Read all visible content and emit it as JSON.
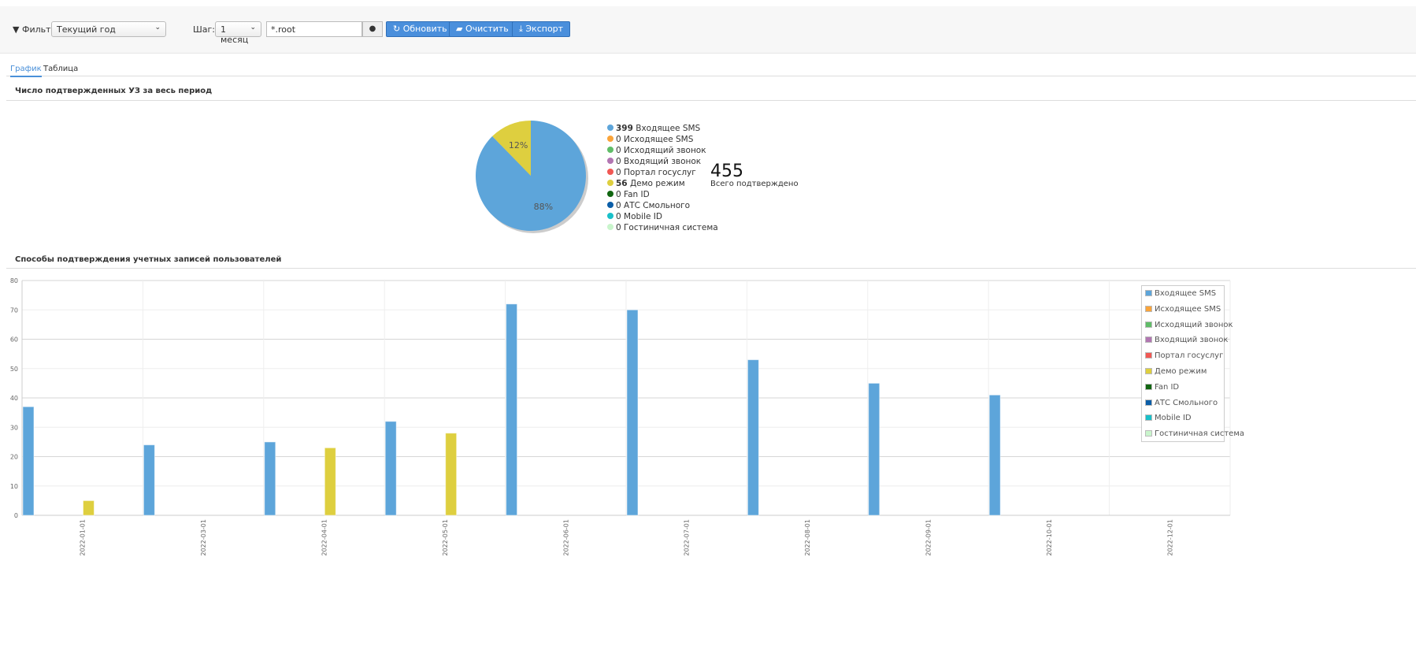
{
  "toolbar": {
    "filter_label": "Фильтр:",
    "filter_value": "Текущий год",
    "step_label": "Шаг:",
    "step_value": "1 месяц",
    "scope_value": "*.root",
    "refresh": "Обновить",
    "clear": "Очистить",
    "export": "Экспорт"
  },
  "tabs": [
    {
      "label": "График",
      "active": true
    },
    {
      "label": "Таблица",
      "active": false
    }
  ],
  "pie_section": {
    "title": "Число подтвержденных УЗ за весь период",
    "total": "455",
    "total_label": "Всего подтверждено"
  },
  "bar_section": {
    "title": "Способы подтверждения учетных записей пользователей"
  },
  "colors": [
    "#5da5da",
    "#faa43a",
    "#60bd68",
    "#b276b2",
    "#f15854",
    "#decf3f",
    "#116611",
    "#0b5ea8",
    "#19c0c9",
    "#c9f5cc"
  ],
  "chart_data": [
    {
      "type": "pie",
      "slices": [
        {
          "name": "Входящее SMS",
          "value": 399,
          "label": "88%"
        },
        {
          "name": "Исходящее SMS",
          "value": 0
        },
        {
          "name": "Исходящий звонок",
          "value": 0
        },
        {
          "name": "Входящий звонок",
          "value": 0
        },
        {
          "name": "Портал госуслуг",
          "value": 0
        },
        {
          "name": "Демо режим",
          "value": 56,
          "label": "12%"
        },
        {
          "name": "Fan ID",
          "value": 0
        },
        {
          "name": "АТС Смольного",
          "value": 0
        },
        {
          "name": "Mobile ID",
          "value": 0
        },
        {
          "name": "Гостиничная система",
          "value": 0
        }
      ]
    },
    {
      "type": "bar",
      "categories": [
        "2022-01-01",
        "2022-03-01",
        "2022-04-01",
        "2022-05-01",
        "2022-06-01",
        "2022-07-01",
        "2022-08-01",
        "2022-09-01",
        "2022-10-01",
        "2022-12-01"
      ],
      "ylim": [
        0,
        80
      ],
      "yticks": [
        0,
        10,
        20,
        30,
        40,
        50,
        60,
        70,
        80
      ],
      "grid": true,
      "legend": "top-right",
      "series": [
        {
          "name": "Входящее SMS",
          "values": [
            37,
            24,
            25,
            32,
            72,
            70,
            53,
            45,
            41,
            0
          ]
        },
        {
          "name": "Исходящее SMS",
          "values": [
            0,
            0,
            0,
            0,
            0,
            0,
            0,
            0,
            0,
            0
          ]
        },
        {
          "name": "Исходящий звонок",
          "values": [
            0,
            0,
            0,
            0,
            0,
            0,
            0,
            0,
            0,
            0
          ]
        },
        {
          "name": "Входящий звонок",
          "values": [
            0,
            0,
            0,
            0,
            0,
            0,
            0,
            0,
            0,
            0
          ]
        },
        {
          "name": "Портал госуслуг",
          "values": [
            0,
            0,
            0,
            0,
            0,
            0,
            0,
            0,
            0,
            0
          ]
        },
        {
          "name": "Демо режим",
          "values": [
            5,
            0,
            23,
            28,
            0,
            0,
            0,
            0,
            0,
            0
          ]
        },
        {
          "name": "Fan ID",
          "values": [
            0,
            0,
            0,
            0,
            0,
            0,
            0,
            0,
            0,
            0
          ]
        },
        {
          "name": "АТС Смольного",
          "values": [
            0,
            0,
            0,
            0,
            0,
            0,
            0,
            0,
            0,
            0
          ]
        },
        {
          "name": "Mobile ID",
          "values": [
            0,
            0,
            0,
            0,
            0,
            0,
            0,
            0,
            0,
            0
          ]
        },
        {
          "name": "Гостиничная система",
          "values": [
            0,
            0,
            0,
            0,
            0,
            0,
            0,
            0,
            0,
            0
          ]
        }
      ]
    }
  ]
}
